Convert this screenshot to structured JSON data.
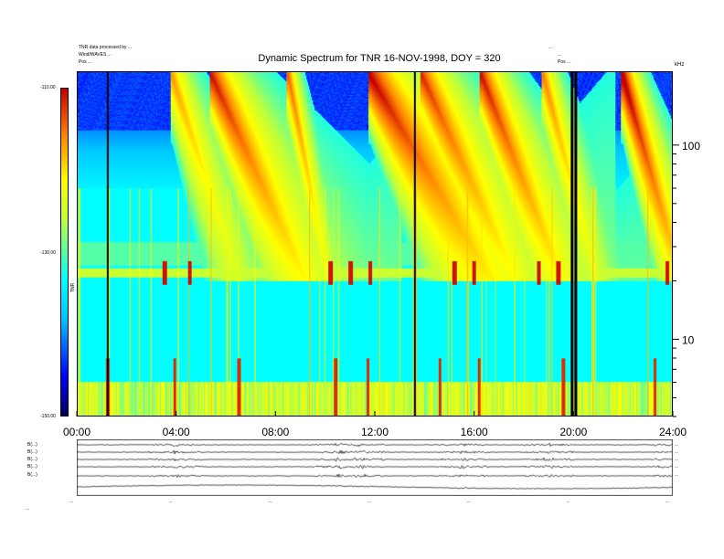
{
  "chart_data": {
    "type": "heatmap",
    "title": "Dynamic Spectrum for TNR 16-NOV-1998, DOY = 320",
    "header_left": [
      "TNR data processed by ...",
      "Wind/WAVES ...",
      "Pos  ..."
    ],
    "header_right": [
      "...",
      "...",
      "Pos  ..."
    ],
    "x_ticks": [
      "00:00",
      "04:00",
      "08:00",
      "12:00",
      "16:00",
      "20:00",
      "24:00"
    ],
    "x_range_hours": [
      0,
      24
    ],
    "freq_ticks": [
      "100",
      "10"
    ],
    "freq_unit": "kHz",
    "freq_range_khz": [
      4,
      240
    ],
    "colorbar_ticks": [
      "-110.00",
      "-130.00",
      "-150.00"
    ],
    "colorbar_label": "TNR",
    "colorbar_range_db": [
      -150,
      -110
    ],
    "black_gaps_hours": [
      1.2,
      13.6,
      19.95,
      20.1
    ],
    "bursts": [
      {
        "t0": 3.8,
        "tail_h": 2.5,
        "f_start": 230,
        "intensity": 0.65
      },
      {
        "t0": 5.4,
        "tail_h": 3.5,
        "f_start": 230,
        "intensity": 0.9
      },
      {
        "t0": 8.5,
        "tail_h": 1.5,
        "f_start": 230,
        "intensity": 0.75
      },
      {
        "t0": 11.8,
        "tail_h": 4.5,
        "f_start": 230,
        "intensity": 0.95
      },
      {
        "t0": 13.9,
        "tail_h": 3.5,
        "f_start": 230,
        "intensity": 0.85
      },
      {
        "t0": 16.3,
        "tail_h": 3.0,
        "f_start": 230,
        "intensity": 0.9
      },
      {
        "t0": 18.8,
        "tail_h": 2.0,
        "f_start": 230,
        "intensity": 0.7
      },
      {
        "t0": 22.0,
        "tail_h": 2.2,
        "f_start": 230,
        "intensity": 1.0
      }
    ],
    "plasma_line_khz": 22,
    "plasma_spikes_hours": [
      3.5,
      4.5,
      10.2,
      11.0,
      11.8,
      15.2,
      16.0,
      18.6,
      19.4,
      23.8
    ],
    "lf_spikes_hours": [
      1.2,
      3.9,
      6.5,
      10.4,
      11.7,
      14.6,
      16.2,
      19.6,
      23.3
    ],
    "strip_panels": {
      "labels": [
        "B(...)",
        "B(...)",
        "B(...)",
        "B(...)",
        "B(...)"
      ],
      "right_ticks": [
        "...",
        "...",
        "...",
        "...",
        "..."
      ],
      "x_ticks": [
        "...",
        "...",
        "...",
        "...",
        "...",
        "...",
        "..."
      ]
    },
    "footer_label": "..."
  }
}
